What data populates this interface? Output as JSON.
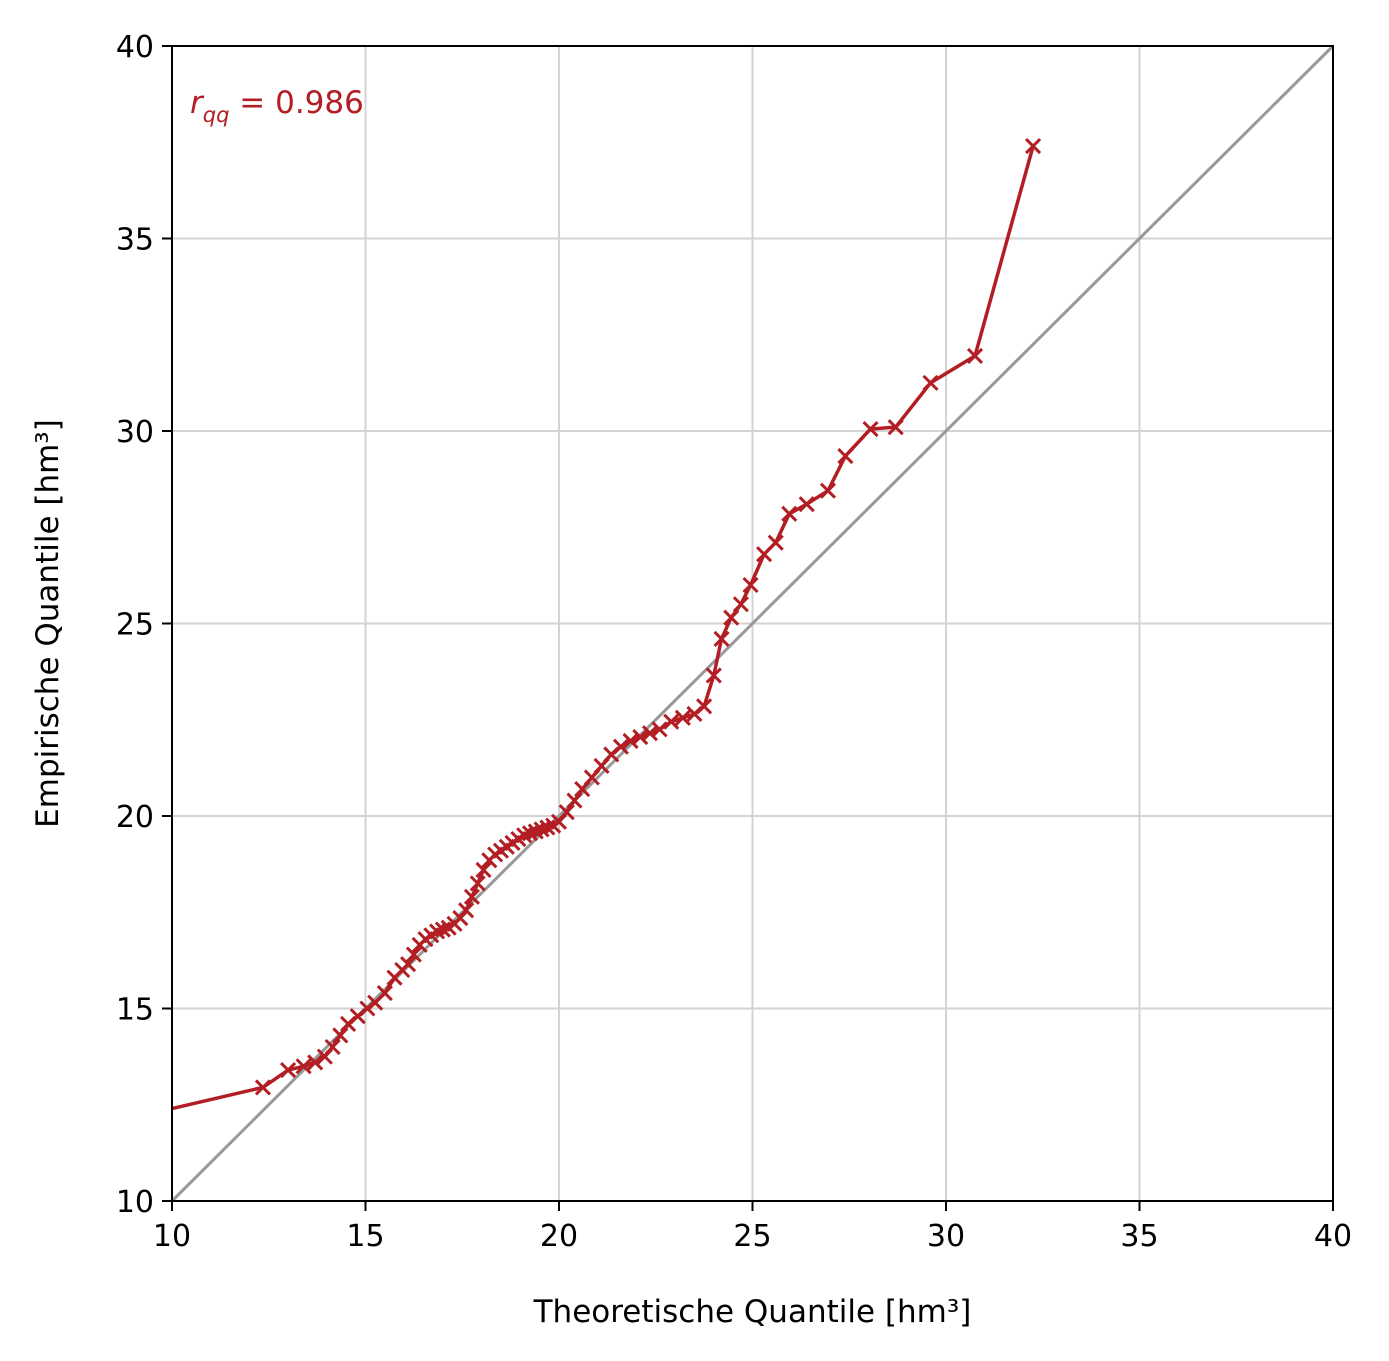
{
  "chart_data": {
    "type": "line",
    "xlabel": "Theoretische Quantile [hm³]",
    "ylabel": "Empirische Quantile [hm³]",
    "xlim": [
      10,
      40
    ],
    "ylim": [
      10,
      40
    ],
    "xticks": [
      "10",
      "15",
      "20",
      "25",
      "30",
      "35",
      "40"
    ],
    "yticks": [
      "10",
      "15",
      "20",
      "25",
      "30",
      "35",
      "40"
    ],
    "grid": true,
    "annotation": {
      "symbol": "r",
      "subscript": "qq",
      "text": " = 0.986",
      "color": "#b21e23"
    },
    "reference_line": {
      "x": [
        10,
        40
      ],
      "y": [
        10,
        40
      ],
      "color": "#999999"
    },
    "series": [
      {
        "color": "#b21e23",
        "marker": "x",
        "first_point_marker": false,
        "x": [
          10.0,
          12.35,
          13.0,
          13.4,
          13.7,
          13.95,
          14.15,
          14.35,
          14.55,
          14.8,
          15.05,
          15.25,
          15.5,
          15.75,
          15.95,
          16.1,
          16.25,
          16.4,
          16.55,
          16.7,
          16.85,
          17.0,
          17.15,
          17.3,
          17.45,
          17.6,
          17.75,
          17.9,
          18.05,
          18.2,
          18.35,
          18.5,
          18.65,
          18.8,
          18.95,
          19.1,
          19.25,
          19.4,
          19.55,
          19.7,
          19.85,
          20.0,
          20.2,
          20.4,
          20.6,
          20.85,
          21.1,
          21.35,
          21.6,
          21.85,
          22.1,
          22.35,
          22.6,
          22.9,
          23.2,
          23.5,
          23.75,
          24.0,
          24.2,
          24.45,
          24.7,
          24.95,
          25.3,
          25.6,
          25.95,
          26.4,
          26.95,
          27.4,
          28.05,
          28.7,
          29.6,
          30.75,
          32.25
        ],
        "y": [
          12.4,
          12.95,
          13.4,
          13.5,
          13.6,
          13.75,
          14.0,
          14.3,
          14.6,
          14.8,
          15.0,
          15.15,
          15.4,
          15.8,
          16.0,
          16.15,
          16.4,
          16.65,
          16.8,
          16.9,
          17.0,
          17.05,
          17.1,
          17.2,
          17.35,
          17.55,
          17.9,
          18.25,
          18.6,
          18.85,
          19.0,
          19.1,
          19.2,
          19.3,
          19.4,
          19.5,
          19.55,
          19.6,
          19.65,
          19.7,
          19.75,
          19.85,
          20.1,
          20.4,
          20.7,
          21.0,
          21.3,
          21.6,
          21.8,
          21.95,
          22.05,
          22.15,
          22.25,
          22.45,
          22.55,
          22.65,
          22.85,
          23.65,
          24.6,
          25.15,
          25.5,
          26.0,
          26.8,
          27.1,
          27.85,
          28.1,
          28.45,
          29.35,
          30.05,
          30.1,
          31.25,
          31.95,
          37.4
        ]
      }
    ]
  }
}
